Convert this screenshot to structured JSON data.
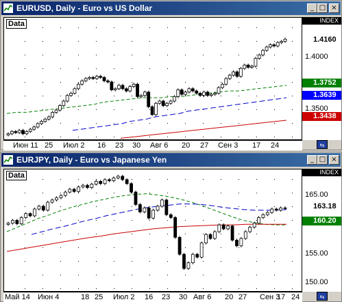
{
  "windows": [
    {
      "title": "EURUSD, Daily - Euro vs US Dollar",
      "data_label": "Data",
      "scale_header": "INDEX",
      "y_ticks": [
        "1.4000",
        "1.3500"
      ],
      "tags": [
        {
          "value": "1.4160",
          "bg": "#ffffff",
          "fg": "#000000"
        },
        {
          "value": "1.3752",
          "bg": "#008000",
          "fg": "#ffffff"
        },
        {
          "value": "1.3639",
          "bg": "#0000ff",
          "fg": "#ffffff"
        },
        {
          "value": "1.3438",
          "bg": "#cc0000",
          "fg": "#ffffff"
        }
      ],
      "x_labels": [
        "Июн 11",
        "25",
        "Июл 2",
        "16",
        "23",
        "30",
        "Авг 6",
        "20",
        "27",
        "Сен 3",
        "17",
        "24"
      ],
      "nav_label": "⇆"
    },
    {
      "title": "EURJPY, Daily - Euro vs Japanese Yen",
      "data_label": "Data",
      "scale_header": "INDEX",
      "y_ticks": [
        "165.00",
        "155.00",
        "150.00"
      ],
      "tags": [
        {
          "value": "163.18",
          "bg": "#ffffff",
          "fg": "#000000"
        },
        {
          "value": "160.20",
          "bg": "#008000",
          "fg": "#ffffff"
        }
      ],
      "x_labels": [
        "Май 14",
        "Июн 4",
        "18",
        "25",
        "Июл 2",
        "16",
        "23",
        "30",
        "Авг 6",
        "20",
        "27",
        "Сен 3",
        "17",
        "24"
      ],
      "nav_label": "⇆"
    }
  ],
  "window_buttons": {
    "minimize": "_",
    "maximize": "□",
    "close": "×"
  },
  "chart_data": [
    {
      "type": "line",
      "title": "EURUSD, Daily - Euro vs US Dollar",
      "ylim": [
        1.327,
        1.435
      ],
      "series": [
        {
          "values": [
            1.332,
            1.334,
            1.333,
            1.335,
            1.332,
            1.334,
            1.336,
            1.338,
            1.341,
            1.343,
            1.345,
            1.347,
            1.351,
            1.353,
            1.357,
            1.361,
            1.366,
            1.368,
            1.372,
            1.376,
            1.379,
            1.381,
            1.382,
            1.381,
            1.383,
            1.382,
            1.379,
            1.378,
            1.371,
            1.372,
            1.375,
            1.372,
            1.37,
            1.374,
            1.376,
            1.365,
            1.366,
            1.369,
            1.356,
            1.349,
            1.359,
            1.361,
            1.357,
            1.359,
            1.361,
            1.365,
            1.371,
            1.367,
            1.369,
            1.372,
            1.37,
            1.368,
            1.366,
            1.369,
            1.366,
            1.367,
            1.368,
            1.373,
            1.376,
            1.381,
            1.384,
            1.387,
            1.383,
            1.39,
            1.393,
            1.391,
            1.392,
            1.399,
            1.402,
            1.406,
            1.409,
            1.411,
            1.41,
            1.413,
            1.414,
            1.416
          ]
        },
        {
          "values": [
            1.35,
            1.351,
            1.351,
            1.352,
            1.353,
            1.354,
            1.355,
            1.356,
            1.357,
            1.358,
            1.36,
            1.361,
            1.362,
            1.363,
            1.364,
            1.364,
            1.364,
            1.365,
            1.365,
            1.366,
            1.367,
            1.368,
            1.369,
            1.37,
            1.37,
            1.371,
            1.372,
            1.373,
            1.374,
            1.375
          ]
        },
        {
          "values": [
            1.335,
            1.336,
            1.337,
            1.338,
            1.339,
            1.34,
            1.341,
            1.343,
            1.344,
            1.345,
            1.347,
            1.348,
            1.349,
            1.35,
            1.352,
            1.353,
            1.354,
            1.355,
            1.356,
            1.357,
            1.358,
            1.359,
            1.36,
            1.361,
            1.362,
            1.363,
            1.364
          ]
        },
        {
          "values": [
            1.328,
            1.329,
            1.33,
            1.331,
            1.332,
            1.333,
            1.334,
            1.335,
            1.336,
            1.337,
            1.338,
            1.339,
            1.34,
            1.341,
            1.342,
            1.343,
            1.344
          ]
        }
      ]
    },
    {
      "type": "line",
      "title": "EURJPY, Daily - Euro vs Japanese Yen",
      "ylim": [
        148.5,
        170
      ],
      "series": [
        {
          "values": [
            160.5,
            161.0,
            160.4,
            161.5,
            162.2,
            161.8,
            163.0,
            163.5,
            162.8,
            164.2,
            164.6,
            165.0,
            165.4,
            166.0,
            166.5,
            166.1,
            166.9,
            167.2,
            166.8,
            167.4,
            167.9,
            167.5,
            168.2,
            168.0,
            168.5,
            168.8,
            168.2,
            167.5,
            166.0,
            163.8,
            162.5,
            163.2,
            161.4,
            162.8,
            163.5,
            164.6,
            162.0,
            161.5,
            158.0,
            155.0,
            152.5,
            153.5,
            155.0,
            154.5,
            157.0,
            158.5,
            157.8,
            159.0,
            160.2,
            159.5,
            160.0,
            157.5,
            156.5,
            157.8,
            159.0,
            159.8,
            160.5,
            161.5,
            162.0,
            162.4,
            163.0,
            162.8,
            163.2,
            163.18
          ]
        },
        {
          "values": [
            159.0,
            159.8,
            160.6,
            161.4,
            162.0,
            162.7,
            163.3,
            163.8,
            164.3,
            164.7,
            165.1,
            165.4,
            165.6,
            165.7,
            165.5,
            165.2,
            164.8,
            164.3,
            163.7,
            163.0,
            162.3,
            161.6,
            161.0,
            160.6,
            160.3,
            160.2,
            160.2
          ]
        },
        {
          "values": [
            158.5,
            159.0,
            159.5,
            159.9,
            160.4,
            160.9,
            161.3,
            161.8,
            162.2,
            162.6,
            163.0,
            163.3,
            163.5,
            163.7,
            163.9,
            163.9,
            163.8,
            163.6,
            163.3,
            163.1,
            162.9,
            162.8,
            162.8,
            162.8,
            162.9
          ]
        },
        {
          "values": [
            155.5,
            155.9,
            156.3,
            156.7,
            157.1,
            157.5,
            157.9,
            158.2,
            158.6,
            158.9,
            159.2,
            159.5,
            159.7,
            159.9,
            160.0,
            160.1,
            160.2,
            160.2,
            160.3,
            160.3,
            160.3,
            160.3
          ]
        }
      ]
    }
  ]
}
